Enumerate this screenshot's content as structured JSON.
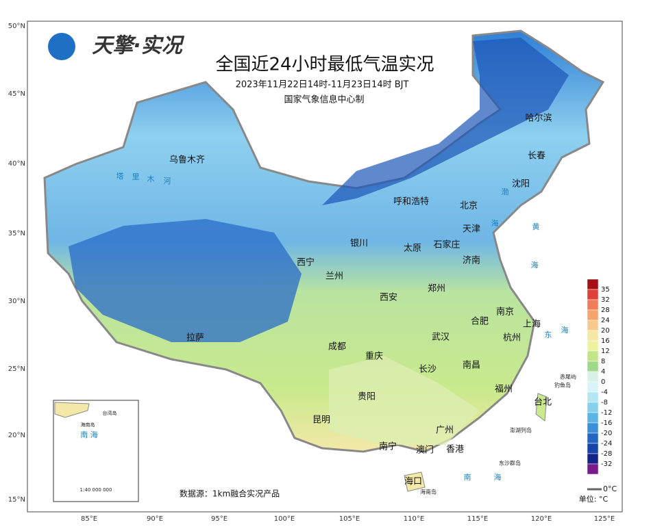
{
  "header": {
    "logo": "天擎·实况",
    "title": "全国近24小时最低气温实况",
    "subtitle": "2023年11月22日14时-11月23日14时 BJT",
    "producer": "国家气象信息中心制"
  },
  "axes": {
    "lat_labels": [
      "50°N",
      "45°N",
      "40°N",
      "35°N",
      "30°N",
      "25°N",
      "20°N",
      "15°N"
    ],
    "lon_labels": [
      "85°E",
      "90°E",
      "95°E",
      "100°E",
      "105°E",
      "110°E",
      "115°E",
      "120°E",
      "125°E"
    ]
  },
  "cities": [
    {
      "name": "乌鲁木齐"
    },
    {
      "name": "呼和浩特"
    },
    {
      "name": "北京"
    },
    {
      "name": "天津"
    },
    {
      "name": "哈尔滨"
    },
    {
      "name": "长春"
    },
    {
      "name": "沈阳"
    },
    {
      "name": "银川"
    },
    {
      "name": "太原"
    },
    {
      "name": "石家庄"
    },
    {
      "name": "济南"
    },
    {
      "name": "西宁"
    },
    {
      "name": "兰州"
    },
    {
      "name": "西安"
    },
    {
      "name": "郑州"
    },
    {
      "name": "南京"
    },
    {
      "name": "合肥"
    },
    {
      "name": "上海"
    },
    {
      "name": "杭州"
    },
    {
      "name": "拉萨"
    },
    {
      "name": "成都"
    },
    {
      "name": "重庆"
    },
    {
      "name": "武汉"
    },
    {
      "name": "长沙"
    },
    {
      "name": "南昌"
    },
    {
      "name": "福州"
    },
    {
      "name": "贵阳"
    },
    {
      "name": "昆明"
    },
    {
      "name": "台北"
    },
    {
      "name": "广州"
    },
    {
      "name": "南宁"
    },
    {
      "name": "澳门"
    },
    {
      "name": "香港"
    },
    {
      "name": "海口"
    }
  ],
  "water_labels": [
    "渤",
    "海",
    "黄",
    "海",
    "东",
    "海",
    "南",
    "海",
    "塔",
    "里",
    "木",
    "河"
  ],
  "islands": [
    "赤尾屿",
    "钓鱼岛",
    "澎湖列岛",
    "东沙群岛",
    "海南岛"
  ],
  "inset": {
    "labels": [
      "台湾岛",
      "海南岛",
      "南 海"
    ],
    "scale": "1:40 000 000"
  },
  "legend": {
    "values": [
      35,
      32,
      28,
      24,
      20,
      16,
      12,
      8,
      4,
      0,
      -4,
      -8,
      -12,
      -16,
      -20,
      -24,
      -28,
      -32
    ],
    "colors": [
      "#a50f15",
      "#e0403a",
      "#f07c5a",
      "#f5a46e",
      "#f8c98c",
      "#f6e7a6",
      "#ecf2a0",
      "#c3e58a",
      "#9fd98a",
      "#d8f0e8",
      "#d8f4f8",
      "#b4e6f2",
      "#86d0ec",
      "#5cb4e4",
      "#3a8fd8",
      "#2266c4",
      "#1744a8",
      "#14238a",
      "#7a1b8c"
    ],
    "zero_line": "0°C",
    "unit": "单位: °C"
  },
  "footer": {
    "source": "数据源：1km融合实况产品"
  }
}
